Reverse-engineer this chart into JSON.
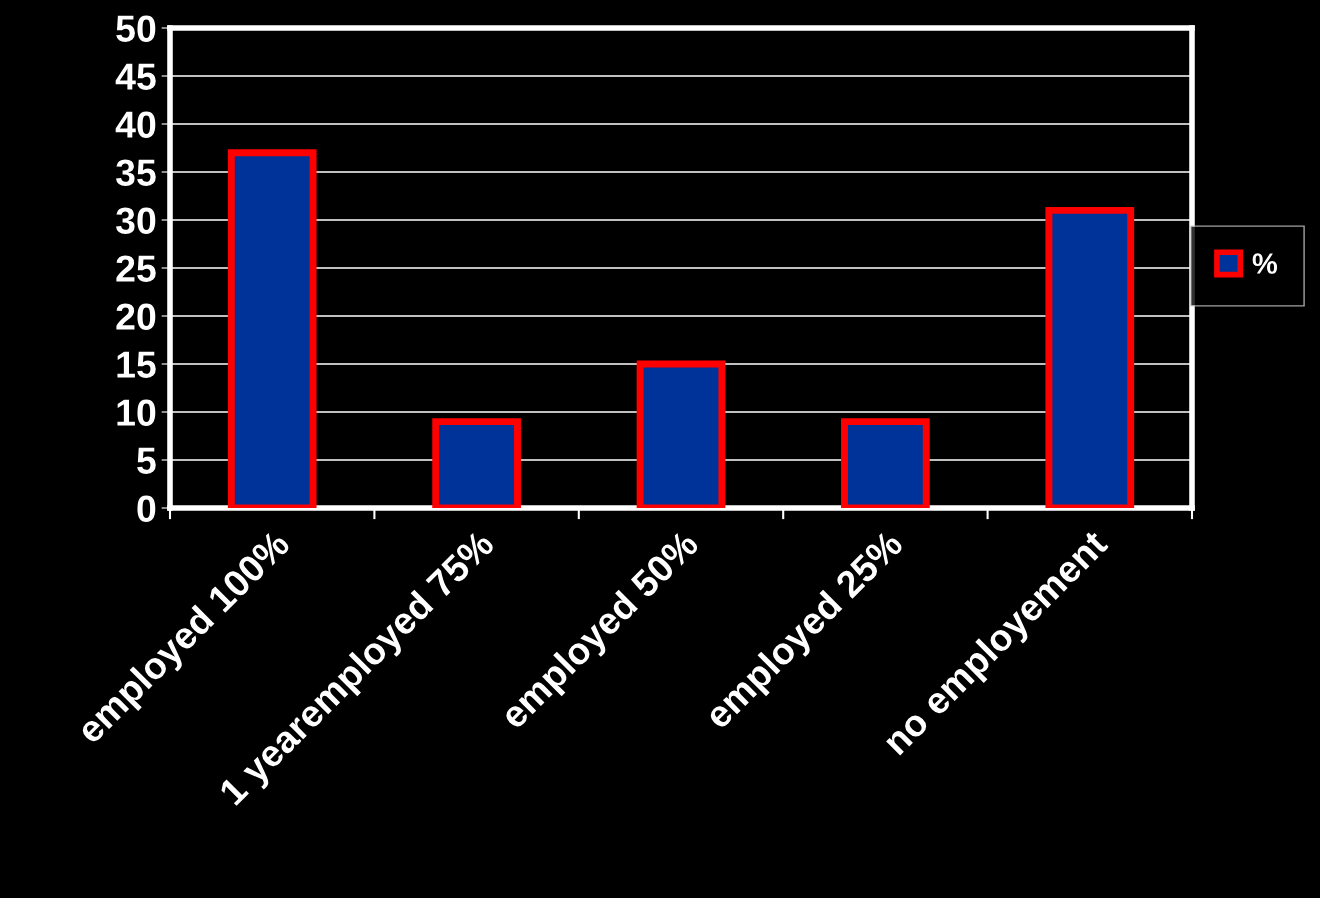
{
  "chart_data": {
    "type": "bar",
    "categories": [
      "employed 100%",
      "1 yearemployed 75%",
      "employed 50%",
      "employed 25%",
      "no employement"
    ],
    "series": [
      {
        "name": "%",
        "color": "#003399",
        "values": [
          37,
          9,
          15,
          9,
          31
        ]
      }
    ],
    "ylim": [
      0,
      50
    ],
    "yticks": [
      0,
      5,
      10,
      15,
      20,
      25,
      30,
      35,
      40,
      45,
      50
    ],
    "grid": "y",
    "legend": "right"
  }
}
